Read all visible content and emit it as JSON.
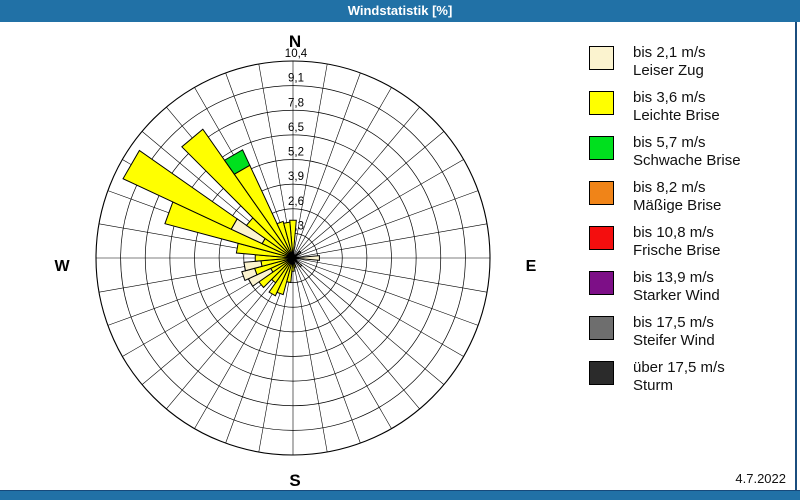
{
  "title": "Windstatistik [%]",
  "date": "4.7.2022",
  "colors": {
    "title_blue": "#2171a6",
    "border_navy": "#1b4d7e",
    "cream": "#FBF3CF",
    "yellow": "#FFFF00",
    "green": "#00E01E",
    "orange": "#F08418",
    "red": "#F40E0E",
    "purple": "#7D0F87",
    "gray": "#6E6E6E",
    "dark": "#2B2B2B"
  },
  "compass": {
    "n": "N",
    "e": "E",
    "s": "S",
    "w": "W"
  },
  "chart_data": {
    "type": "windrose",
    "title": "Windstatistik [%]",
    "unit": "%",
    "sector_width_deg": 10,
    "rings": [
      1.3,
      2.6,
      3.9,
      5.2,
      6.5,
      7.8,
      9.1,
      10.4
    ],
    "ring_labels": [
      "1,3",
      "2,6",
      "3,9",
      "5,2",
      "6,5",
      "7,8",
      "9,1",
      "10,4"
    ],
    "rlim": [
      0,
      10.4
    ],
    "grid": true,
    "legend_position": "right",
    "bars": [
      {
        "dir": 0,
        "segments": [
          {
            "class": "bis 3,6 m/s",
            "color": "yellow",
            "from": 0,
            "to": 2.0
          }
        ]
      },
      {
        "dir": 50,
        "segments": [
          {
            "class": "bis 2,1 m/s",
            "color": "cream",
            "from": 0,
            "to": 0.5
          }
        ]
      },
      {
        "dir": 90,
        "segments": [
          {
            "class": "bis 2,1 m/s",
            "color": "cream",
            "from": 0,
            "to": 1.4
          }
        ]
      },
      {
        "dir": 135,
        "segments": [
          {
            "class": "bis 2,1 m/s",
            "color": "cream",
            "from": 0,
            "to": 0.6
          }
        ]
      },
      {
        "dir": 170,
        "segments": [
          {
            "class": "bis 3,6 m/s",
            "color": "yellow",
            "from": 0,
            "to": 0.5
          }
        ]
      },
      {
        "dir": 180,
        "segments": [
          {
            "class": "bis 3,6 m/s",
            "color": "yellow",
            "from": 0,
            "to": 0.7
          }
        ]
      },
      {
        "dir": 190,
        "segments": [
          {
            "class": "bis 3,6 m/s",
            "color": "yellow",
            "from": 0,
            "to": 1.3
          }
        ]
      },
      {
        "dir": 200,
        "segments": [
          {
            "class": "bis 3,6 m/s",
            "color": "yellow",
            "from": 0,
            "to": 2.0
          }
        ]
      },
      {
        "dir": 210,
        "segments": [
          {
            "class": "bis 3,6 m/s",
            "color": "yellow",
            "from": 0,
            "to": 2.2
          }
        ]
      },
      {
        "dir": 220,
        "segments": [
          {
            "class": "bis 3,6 m/s",
            "color": "yellow",
            "from": 0,
            "to": 1.6
          }
        ]
      },
      {
        "dir": 230,
        "segments": [
          {
            "class": "bis 3,6 m/s",
            "color": "yellow",
            "from": 0,
            "to": 2.2
          }
        ]
      },
      {
        "dir": 240,
        "segments": [
          {
            "class": "bis 3,6 m/s",
            "color": "yellow",
            "from": 0,
            "to": 1.3
          },
          {
            "class": "bis 2,1 m/s",
            "color": "cream",
            "from": 1.3,
            "to": 2.6
          }
        ]
      },
      {
        "dir": 250,
        "segments": [
          {
            "class": "bis 3,6 m/s",
            "color": "yellow",
            "from": 0,
            "to": 2.1
          },
          {
            "class": "bis 2,1 m/s",
            "color": "cream",
            "from": 2.1,
            "to": 2.8
          }
        ]
      },
      {
        "dir": 260,
        "segments": [
          {
            "class": "bis 3,6 m/s",
            "color": "yellow",
            "from": 0,
            "to": 1.7
          },
          {
            "class": "bis 2,1 m/s",
            "color": "cream",
            "from": 1.7,
            "to": 2.6
          }
        ]
      },
      {
        "dir": 270,
        "segments": [
          {
            "class": "bis 3,6 m/s",
            "color": "yellow",
            "from": 0,
            "to": 2.0
          }
        ]
      },
      {
        "dir": 280,
        "segments": [
          {
            "class": "bis 3,6 m/s",
            "color": "yellow",
            "from": 0,
            "to": 3.0
          }
        ]
      },
      {
        "dir": 290,
        "segments": [
          {
            "class": "bis 3,6 m/s",
            "color": "yellow",
            "from": 0,
            "to": 7.0
          }
        ]
      },
      {
        "dir": 300,
        "segments": [
          {
            "class": "bis 3,6 m/s",
            "color": "yellow",
            "from": 0,
            "to": 1.8
          },
          {
            "class": "bis 2,1 m/s",
            "color": "cream",
            "from": 1.8,
            "to": 3.6
          },
          {
            "class": "bis 3,6 m/s",
            "color": "yellow",
            "from": 3.6,
            "to": 9.9
          }
        ]
      },
      {
        "dir": 310,
        "segments": [
          {
            "class": "bis 3,6 m/s",
            "color": "yellow",
            "from": 0,
            "to": 3.0
          }
        ]
      },
      {
        "dir": 320,
        "segments": [
          {
            "class": "bis 3,6 m/s",
            "color": "yellow",
            "from": 0,
            "to": 8.3
          }
        ]
      },
      {
        "dir": 330,
        "segments": [
          {
            "class": "bis 3,6 m/s",
            "color": "yellow",
            "from": 0,
            "to": 5.4
          },
          {
            "class": "bis 5,7 m/s",
            "color": "green",
            "from": 5.4,
            "to": 6.3
          }
        ]
      },
      {
        "dir": 340,
        "segments": [
          {
            "class": "bis 3,6 m/s",
            "color": "yellow",
            "from": 0,
            "to": 2.0
          }
        ]
      },
      {
        "dir": 350,
        "segments": [
          {
            "class": "bis 3,6 m/s",
            "color": "yellow",
            "from": 0,
            "to": 1.9
          }
        ]
      }
    ]
  },
  "legend": {
    "items": [
      {
        "speed": "bis 2,1 m/s",
        "name": "Leiser Zug",
        "color": "cream"
      },
      {
        "speed": "bis 3,6 m/s",
        "name": "Leichte Brise",
        "color": "yellow"
      },
      {
        "speed": "bis 5,7 m/s",
        "name": "Schwache Brise",
        "color": "green"
      },
      {
        "speed": "bis 8,2 m/s",
        "name": "Mäßige Brise",
        "color": "orange"
      },
      {
        "speed": "bis 10,8 m/s",
        "name": "Frische Brise",
        "color": "red"
      },
      {
        "speed": "bis 13,9 m/s",
        "name": "Starker Wind",
        "color": "purple"
      },
      {
        "speed": "bis 17,5 m/s",
        "name": "Steifer Wind",
        "color": "gray"
      },
      {
        "speed": "über 17,5 m/s",
        "name": "Sturm",
        "color": "dark"
      }
    ]
  }
}
